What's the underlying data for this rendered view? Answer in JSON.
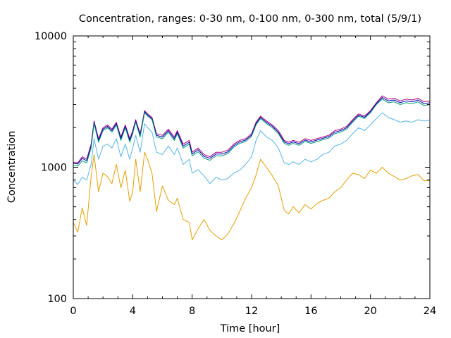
{
  "chart_data": {
    "type": "line",
    "title": "Concentration, ranges: 0-30 nm, 0-100 nm, 0-300 nm, total (5/9/1)",
    "xlabel": "Time [hour]",
    "ylabel": "Concentration",
    "xlim": [
      0,
      24
    ],
    "ylim": [
      100,
      10000
    ],
    "yscale": "log",
    "grid": false,
    "xticks": [
      "0",
      "4",
      "8",
      "12",
      "16",
      "20",
      "24"
    ],
    "yticks": [
      "100",
      "1000",
      "10000"
    ],
    "x": [
      0,
      0.3,
      0.6,
      0.9,
      1.2,
      1.4,
      1.7,
      2.0,
      2.3,
      2.6,
      2.9,
      3.2,
      3.5,
      3.8,
      4.0,
      4.2,
      4.5,
      4.8,
      5.0,
      5.3,
      5.6,
      6.0,
      6.4,
      6.8,
      7.0,
      7.4,
      7.8,
      8.0,
      8.4,
      8.8,
      9.2,
      9.6,
      10.0,
      10.4,
      10.8,
      11.2,
      11.6,
      12.0,
      12.3,
      12.6,
      13.0,
      13.4,
      13.8,
      14.2,
      14.5,
      14.8,
      15.2,
      15.6,
      16.0,
      16.4,
      16.8,
      17.2,
      17.6,
      18.0,
      18.4,
      18.8,
      19.2,
      19.6,
      20.0,
      20.4,
      20.8,
      21.2,
      21.6,
      22.0,
      22.4,
      22.8,
      23.2,
      23.6,
      24.0
    ],
    "series": [
      {
        "color": "#b0007a",
        "values": [
          1090,
          1080,
          1200,
          1150,
          1500,
          2250,
          1650,
          2000,
          2100,
          1950,
          2200,
          1700,
          2100,
          1650,
          1900,
          2300,
          1800,
          2700,
          2550,
          2400,
          1800,
          1750,
          1950,
          1700,
          1900,
          1500,
          1600,
          1300,
          1400,
          1250,
          1200,
          1300,
          1300,
          1350,
          1500,
          1600,
          1650,
          1800,
          2200,
          2450,
          2250,
          2100,
          1900,
          1600,
          1550,
          1600,
          1550,
          1650,
          1600,
          1650,
          1700,
          1750,
          1900,
          1950,
          2050,
          2300,
          2550,
          2450,
          2700,
          3100,
          3500,
          3300,
          3350,
          3200,
          3300,
          3250,
          3350,
          3150,
          3200
        ]
      },
      {
        "color": "#0000b8",
        "values": [
          1070,
          1060,
          1170,
          1120,
          1450,
          2200,
          1600,
          1950,
          2050,
          1900,
          2150,
          1650,
          2050,
          1600,
          1850,
          2250,
          1750,
          2650,
          2500,
          2350,
          1750,
          1700,
          1900,
          1650,
          1850,
          1450,
          1550,
          1260,
          1360,
          1210,
          1170,
          1260,
          1260,
          1310,
          1460,
          1560,
          1610,
          1760,
          2150,
          2400,
          2200,
          2050,
          1850,
          1560,
          1510,
          1560,
          1510,
          1610,
          1560,
          1610,
          1660,
          1710,
          1850,
          1900,
          2000,
          2250,
          2500,
          2400,
          2650,
          3050,
          3400,
          3200,
          3250,
          3100,
          3200,
          3150,
          3250,
          3050,
          3100
        ]
      },
      {
        "color": "#009e73",
        "values": [
          1040,
          1020,
          1120,
          1080,
          1400,
          2150,
          1550,
          1900,
          2000,
          1850,
          2100,
          1600,
          2000,
          1550,
          1800,
          2200,
          1700,
          2600,
          2450,
          2300,
          1700,
          1650,
          1850,
          1600,
          1800,
          1400,
          1500,
          1220,
          1310,
          1170,
          1130,
          1220,
          1220,
          1270,
          1420,
          1520,
          1570,
          1720,
          2100,
          2350,
          2150,
          2000,
          1800,
          1520,
          1470,
          1520,
          1470,
          1570,
          1520,
          1570,
          1620,
          1670,
          1800,
          1850,
          1950,
          2200,
          2450,
          2350,
          2600,
          3000,
          3300,
          3100,
          3150,
          3000,
          3100,
          3050,
          3150,
          2950,
          3000
        ]
      },
      {
        "color": "#56b4e9",
        "values": [
          800,
          740,
          840,
          800,
          1050,
          1650,
          1150,
          1450,
          1500,
          1400,
          1650,
          1200,
          1500,
          1150,
          1400,
          1750,
          1300,
          2150,
          2000,
          1850,
          1300,
          1250,
          1450,
          1250,
          1400,
          1050,
          1150,
          900,
          960,
          860,
          750,
          840,
          800,
          820,
          900,
          950,
          1050,
          1200,
          1600,
          1900,
          1700,
          1600,
          1400,
          1080,
          1050,
          1100,
          1050,
          1150,
          1100,
          1150,
          1250,
          1300,
          1450,
          1500,
          1600,
          1800,
          2000,
          1900,
          2100,
          2350,
          2600,
          2400,
          2300,
          2200,
          2250,
          2200,
          2300,
          2250,
          2280
        ]
      },
      {
        "color": "#e69f00",
        "values": [
          380,
          320,
          490,
          360,
          850,
          1250,
          650,
          900,
          850,
          750,
          1050,
          700,
          950,
          550,
          650,
          1150,
          650,
          1300,
          1150,
          900,
          460,
          720,
          560,
          520,
          580,
          400,
          380,
          280,
          340,
          400,
          330,
          300,
          280,
          310,
          370,
          460,
          580,
          700,
          870,
          1150,
          1000,
          860,
          720,
          470,
          440,
          500,
          450,
          520,
          480,
          530,
          560,
          580,
          650,
          700,
          800,
          900,
          880,
          820,
          950,
          900,
          1000,
          900,
          850,
          800,
          820,
          860,
          880,
          790,
          790
        ]
      }
    ]
  }
}
